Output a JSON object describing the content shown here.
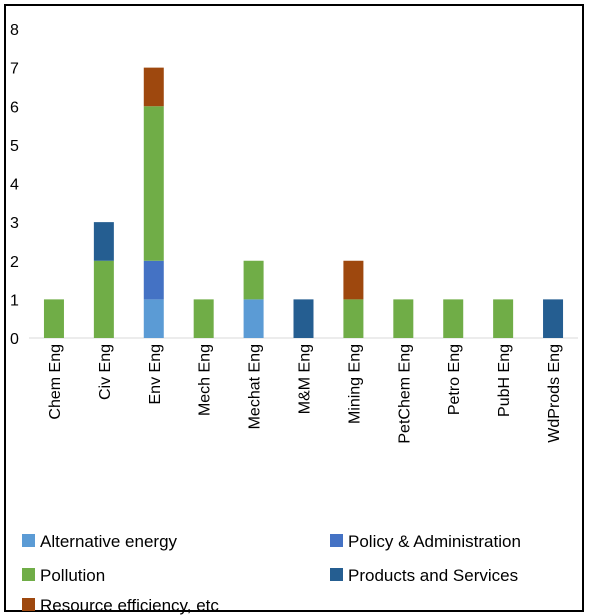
{
  "chart_data": {
    "type": "bar",
    "stacked": true,
    "categories": [
      "Chem Eng",
      "Civ Eng",
      "Env Eng",
      "Mech Eng",
      "Mechat Eng",
      "M&M Eng",
      "Mining Eng",
      "PetChem Eng",
      "Petro Eng",
      "PubH Eng",
      "WdProds Eng"
    ],
    "series": [
      {
        "name": "Alternative energy",
        "color": "#5B9BD5",
        "values": [
          0,
          0,
          1,
          0,
          1,
          0,
          0,
          0,
          0,
          0,
          0
        ]
      },
      {
        "name": "Policy & Administration",
        "color": "#4472C4",
        "values": [
          0,
          0,
          1,
          0,
          0,
          0,
          0,
          0,
          0,
          0,
          0
        ]
      },
      {
        "name": "Pollution",
        "color": "#70AD47",
        "values": [
          1,
          2,
          4,
          1,
          1,
          0,
          1,
          1,
          1,
          1,
          0
        ]
      },
      {
        "name": "Products and Services",
        "color": "#255E91",
        "values": [
          0,
          1,
          0,
          0,
          0,
          1,
          0,
          0,
          0,
          0,
          1
        ]
      },
      {
        "name": "Resource efficiency, etc",
        "color": "#9E480E",
        "values": [
          0,
          0,
          1,
          0,
          0,
          0,
          1,
          0,
          0,
          0,
          0
        ]
      }
    ],
    "ylim": [
      0,
      8
    ],
    "yticks": [
      0,
      1,
      2,
      3,
      4,
      5,
      6,
      7,
      8
    ],
    "grid": false,
    "legend": "bottom",
    "title": "",
    "xlabel": "",
    "ylabel": ""
  }
}
